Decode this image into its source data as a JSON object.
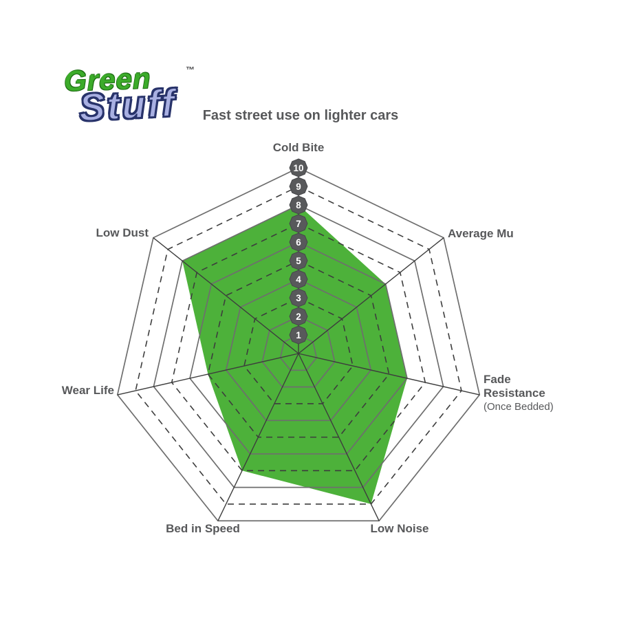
{
  "logo": {
    "word1": "Green",
    "word2": "Stuff",
    "trademark": "™"
  },
  "header": {
    "title": "Fast street use on lighter cars"
  },
  "chart_data": {
    "type": "radar",
    "title": "Fast street use on lighter cars",
    "categories": [
      "Cold Bite",
      "Average Mu",
      "Fade Resistance",
      "Low Noise",
      "Bed in Speed",
      "Wear Life",
      "Low Dust"
    ],
    "values": [
      8,
      6,
      6,
      9,
      7,
      5,
      8
    ],
    "axes": [
      {
        "label": "Cold Bite",
        "value": 8
      },
      {
        "label": "Average Mu",
        "value": 6
      },
      {
        "label": "Fade Resistance",
        "sublabel": "(Once Bedded)",
        "value": 6
      },
      {
        "label": "Low Noise",
        "value": 9
      },
      {
        "label": "Bed in Speed",
        "value": 7
      },
      {
        "label": "Wear Life",
        "value": 5
      },
      {
        "label": "Low Dust",
        "value": 8
      }
    ],
    "scale": {
      "min": 1,
      "max": 10,
      "tick_labels": [
        "1",
        "2",
        "3",
        "4",
        "5",
        "6",
        "7",
        "8",
        "9",
        "10"
      ]
    },
    "grid": {
      "solid_rings": [
        1,
        2,
        4,
        6,
        8,
        10
      ],
      "dashed_rings": [
        3,
        5,
        7,
        9
      ],
      "spokes": true
    },
    "legend": "none",
    "colors": {
      "fill_green": "#4db13a",
      "badge_gray": "#58595b",
      "badge_text": "#ffffff",
      "grid_solid": "#6e6e6e",
      "grid_dashed": "#3d3d3d",
      "label_gray": "#57585a",
      "logo_green": "#3cab2a",
      "logo_lavender": "#a9b0e2"
    }
  }
}
